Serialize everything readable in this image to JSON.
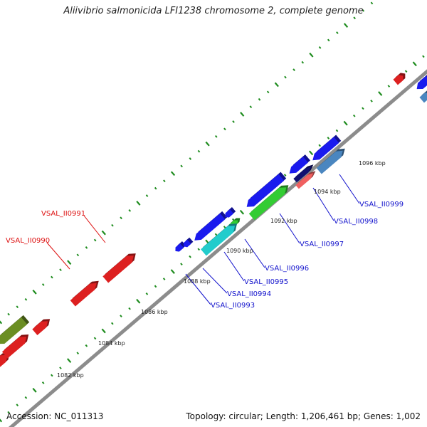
{
  "title": "Aliivibrio salmonicida LFI1238 chromosome 2, complete genome",
  "footer": {
    "accession": "Accession: NC_011313",
    "summary": "Topology: circular; Length: 1,206,461 bp; Genes: 1,002"
  },
  "colors": {
    "backbone": "#8c8c8c",
    "tick": "#1e8c1e",
    "forward_strand": "#dd2020",
    "reverse_strand": "#1a1aee",
    "label_highlight": "#dd1111",
    "label_normal": "#1111cc",
    "green_gene": "#33cc33",
    "olive_gene": "#6b8e23",
    "cyan_gene": "#22cccc",
    "steel_gene": "#4a86c0",
    "navy_gene": "#101070",
    "salmon_gene": "#f06060"
  },
  "scale_labels": [
    "1082 kbp",
    "1084 kbp",
    "1086 kbp",
    "1088 kbp",
    "1090 kbp",
    "1092 kbp",
    "1094 kbp",
    "1096 kbp"
  ],
  "gene_labels": [
    {
      "text": "VSAL_II0990",
      "style": "highlight"
    },
    {
      "text": "VSAL_II0991",
      "style": "highlight"
    },
    {
      "text": "VSAL_II0993",
      "style": "normal"
    },
    {
      "text": "VSAL_II0994",
      "style": "normal"
    },
    {
      "text": "VSAL_II0995",
      "style": "normal"
    },
    {
      "text": "VSAL_II0996",
      "style": "normal"
    },
    {
      "text": "VSAL_II0997",
      "style": "normal"
    },
    {
      "text": "VSAL_II0998",
      "style": "normal"
    },
    {
      "text": "VSAL_II0999",
      "style": "normal"
    }
  ]
}
